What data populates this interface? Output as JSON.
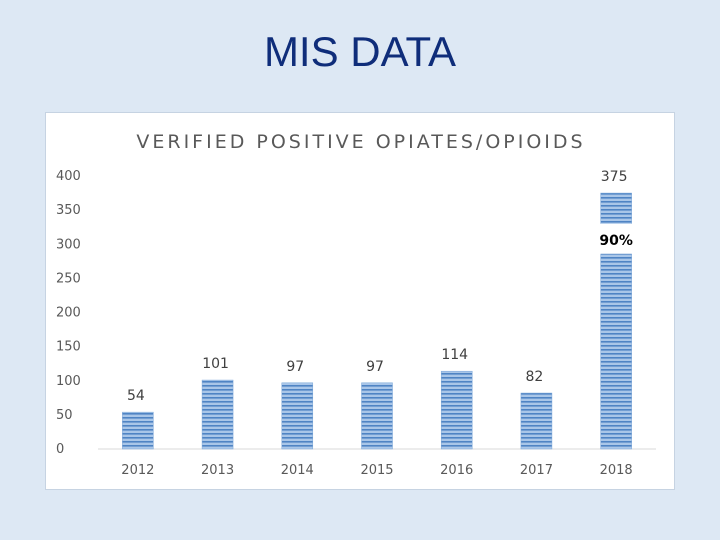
{
  "slide": {
    "title": "MIS DATA"
  },
  "chart_data": {
    "type": "bar",
    "title": "VERIFIED POSITIVE OPIATES/OPIOIDS",
    "xlabel": "",
    "ylabel": "",
    "categories": [
      "2012",
      "2013",
      "2014",
      "2015",
      "2016",
      "2017",
      "2018"
    ],
    "values": [
      54,
      101,
      97,
      97,
      114,
      82,
      375
    ],
    "y_ticks": [
      0,
      50,
      100,
      150,
      200,
      250,
      300,
      350,
      400
    ],
    "ylim": [
      0,
      400
    ],
    "grid": false,
    "legend": "none",
    "annotations": [
      {
        "category": "2018",
        "text": "90%"
      }
    ],
    "bar_color": "#8fb4de"
  }
}
